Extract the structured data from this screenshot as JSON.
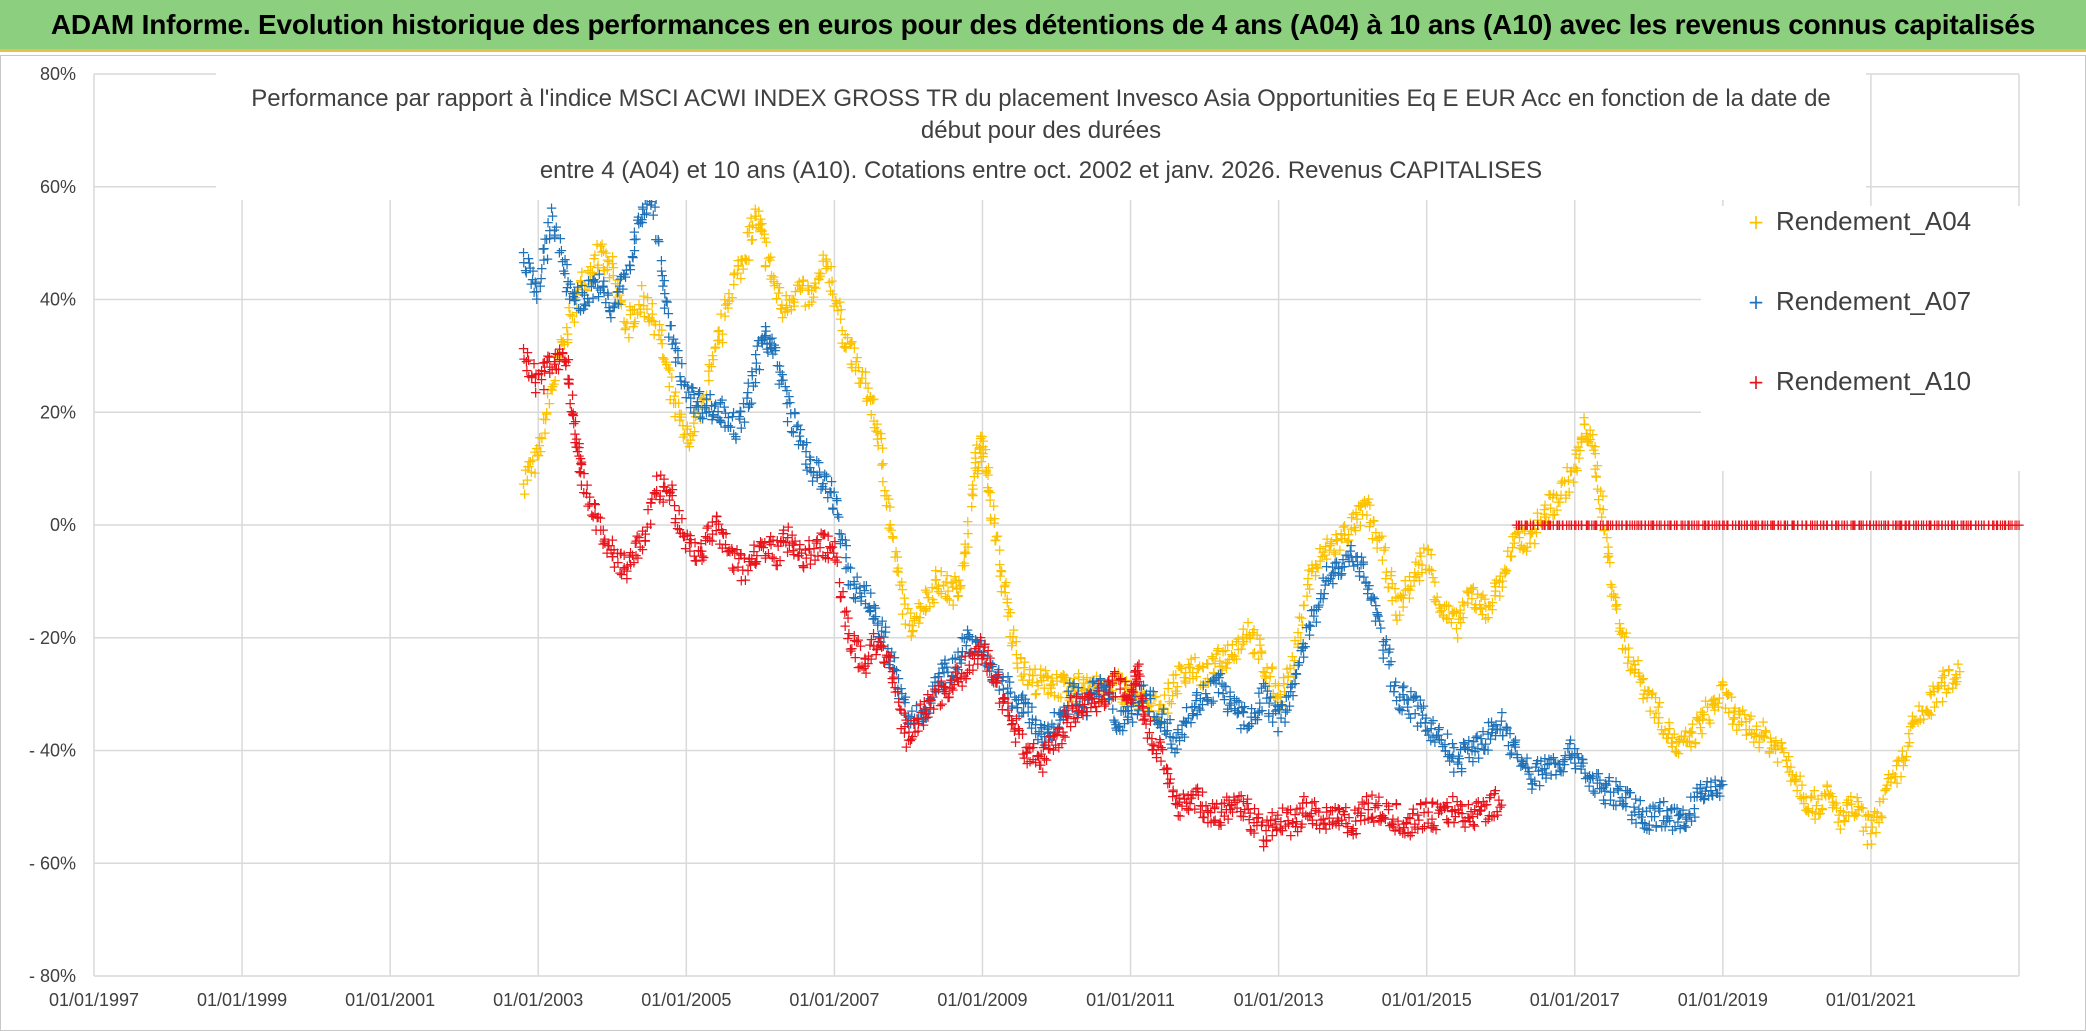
{
  "banner": {
    "text": "ADAM Informe. Evolution historique des performances en euros pour des détentions de 4 ans (A04) à 10 ans (A10) avec les revenus connus capitalisés"
  },
  "chart_data": {
    "type": "scatter",
    "title_lines": [
      "Performance par rapport à l'indice MSCI ACWI INDEX GROSS TR  du placement Invesco Asia Opportunities Eq E EUR Acc en fonction de la date de",
      "début pour des durées",
      "entre 4 (A04) et 10 ans (A10). Cotations entre oct. 2002 et janv. 2026. Revenus CAPITALISES"
    ],
    "xlabel": "",
    "ylabel": "",
    "x_ticks": [
      "01/01/1997",
      "01/01/1999",
      "01/01/2001",
      "01/01/2003",
      "01/01/2005",
      "01/01/2007",
      "01/01/2009",
      "01/01/2011",
      "01/01/2013",
      "01/01/2015",
      "01/01/2017",
      "01/01/2019",
      "01/01/2021"
    ],
    "xlim": [
      1997.0,
      2023.0
    ],
    "y_ticks": [
      "80%",
      "60%",
      "40%",
      "20%",
      "0%",
      "- 20%",
      "- 40%",
      "- 60%",
      "- 80%"
    ],
    "y_tick_values": [
      80,
      60,
      40,
      20,
      0,
      -20,
      -40,
      -60,
      -80
    ],
    "ylim": [
      -80,
      80
    ],
    "grid": true,
    "legend_position": "right",
    "marker": "+",
    "series": [
      {
        "name": "Rendement_A04",
        "color": "#fcc200",
        "points": [
          [
            2002.8,
            8
          ],
          [
            2003.0,
            12
          ],
          [
            2003.2,
            25
          ],
          [
            2003.4,
            35
          ],
          [
            2003.6,
            43
          ],
          [
            2003.8,
            48
          ],
          [
            2004.0,
            45
          ],
          [
            2004.2,
            35
          ],
          [
            2004.4,
            40
          ],
          [
            2004.6,
            36
          ],
          [
            2004.8,
            23
          ],
          [
            2005.0,
            15
          ],
          [
            2005.2,
            20
          ],
          [
            2005.4,
            30
          ],
          [
            2005.6,
            42
          ],
          [
            2005.8,
            48
          ],
          [
            2005.95,
            55
          ],
          [
            2006.1,
            47
          ],
          [
            2006.3,
            38
          ],
          [
            2006.5,
            42
          ],
          [
            2006.7,
            40
          ],
          [
            2006.9,
            47
          ],
          [
            2007.1,
            35
          ],
          [
            2007.3,
            28
          ],
          [
            2007.5,
            22
          ],
          [
            2007.65,
            12
          ],
          [
            2007.8,
            -5
          ],
          [
            2008.0,
            -18
          ],
          [
            2008.2,
            -14
          ],
          [
            2008.4,
            -10
          ],
          [
            2008.6,
            -12
          ],
          [
            2008.75,
            -8
          ],
          [
            2008.9,
            10
          ],
          [
            2009.0,
            15
          ],
          [
            2009.1,
            5
          ],
          [
            2009.25,
            -8
          ],
          [
            2009.4,
            -20
          ],
          [
            2009.6,
            -27
          ],
          [
            2009.8,
            -28
          ],
          [
            2010.0,
            -28
          ],
          [
            2010.2,
            -30
          ],
          [
            2010.4,
            -27
          ],
          [
            2010.6,
            -30
          ],
          [
            2010.8,
            -28
          ],
          [
            2011.0,
            -30
          ],
          [
            2011.2,
            -32
          ],
          [
            2011.4,
            -33
          ],
          [
            2011.6,
            -28
          ],
          [
            2011.8,
            -25
          ],
          [
            2012.0,
            -27
          ],
          [
            2012.2,
            -24
          ],
          [
            2012.4,
            -22
          ],
          [
            2012.6,
            -18
          ],
          [
            2012.8,
            -25
          ],
          [
            2013.0,
            -30
          ],
          [
            2013.2,
            -25
          ],
          [
            2013.4,
            -10
          ],
          [
            2013.6,
            -5
          ],
          [
            2013.8,
            -3
          ],
          [
            2014.0,
            0
          ],
          [
            2014.2,
            3
          ],
          [
            2014.4,
            -5
          ],
          [
            2014.6,
            -15
          ],
          [
            2014.8,
            -10
          ],
          [
            2015.0,
            -5
          ],
          [
            2015.2,
            -15
          ],
          [
            2015.4,
            -18
          ],
          [
            2015.6,
            -12
          ],
          [
            2015.8,
            -15
          ],
          [
            2016.0,
            -10
          ],
          [
            2016.2,
            -3
          ],
          [
            2016.4,
            -2
          ],
          [
            2016.6,
            2
          ],
          [
            2016.8,
            5
          ],
          [
            2017.0,
            10
          ],
          [
            2017.15,
            18
          ],
          [
            2017.3,
            10
          ],
          [
            2017.45,
            -5
          ],
          [
            2017.6,
            -18
          ],
          [
            2017.8,
            -25
          ],
          [
            2018.0,
            -30
          ],
          [
            2018.2,
            -35
          ],
          [
            2018.4,
            -40
          ],
          [
            2018.6,
            -37
          ],
          [
            2018.8,
            -33
          ],
          [
            2019.0,
            -30
          ],
          [
            2019.2,
            -35
          ],
          [
            2019.4,
            -36
          ],
          [
            2019.6,
            -38
          ],
          [
            2019.8,
            -40
          ],
          [
            2020.0,
            -45
          ],
          [
            2020.2,
            -50
          ],
          [
            2020.4,
            -48
          ],
          [
            2020.6,
            -52
          ],
          [
            2020.8,
            -50
          ],
          [
            2021.0,
            -55
          ],
          [
            2021.2,
            -48
          ],
          [
            2021.4,
            -43
          ],
          [
            2021.6,
            -35
          ],
          [
            2021.8,
            -32
          ],
          [
            2022.0,
            -28
          ],
          [
            2022.2,
            -26
          ]
        ]
      },
      {
        "name": "Rendement_A07",
        "color": "#1f72b8",
        "points": [
          [
            2002.8,
            48
          ],
          [
            2003.0,
            42
          ],
          [
            2003.2,
            55
          ],
          [
            2003.4,
            42
          ],
          [
            2003.6,
            40
          ],
          [
            2003.8,
            43
          ],
          [
            2004.0,
            38
          ],
          [
            2004.2,
            45
          ],
          [
            2004.4,
            55
          ],
          [
            2004.55,
            60
          ],
          [
            2004.7,
            40
          ],
          [
            2004.9,
            28
          ],
          [
            2005.1,
            22
          ],
          [
            2005.3,
            21
          ],
          [
            2005.5,
            20
          ],
          [
            2005.7,
            17
          ],
          [
            2005.9,
            25
          ],
          [
            2006.05,
            35
          ],
          [
            2006.2,
            30
          ],
          [
            2006.4,
            20
          ],
          [
            2006.6,
            13
          ],
          [
            2006.8,
            8
          ],
          [
            2007.0,
            5
          ],
          [
            2007.2,
            -10
          ],
          [
            2007.4,
            -12
          ],
          [
            2007.6,
            -17
          ],
          [
            2007.8,
            -25
          ],
          [
            2008.0,
            -35
          ],
          [
            2008.2,
            -33
          ],
          [
            2008.4,
            -28
          ],
          [
            2008.6,
            -25
          ],
          [
            2008.8,
            -20
          ],
          [
            2009.0,
            -22
          ],
          [
            2009.2,
            -28
          ],
          [
            2009.4,
            -30
          ],
          [
            2009.6,
            -33
          ],
          [
            2009.8,
            -38
          ],
          [
            2010.0,
            -35
          ],
          [
            2010.2,
            -30
          ],
          [
            2010.4,
            -32
          ],
          [
            2010.6,
            -28
          ],
          [
            2010.8,
            -35
          ],
          [
            2011.0,
            -33
          ],
          [
            2011.2,
            -30
          ],
          [
            2011.4,
            -34
          ],
          [
            2011.6,
            -38
          ],
          [
            2011.8,
            -33
          ],
          [
            2012.0,
            -30
          ],
          [
            2012.2,
            -28
          ],
          [
            2012.4,
            -33
          ],
          [
            2012.6,
            -35
          ],
          [
            2012.8,
            -30
          ],
          [
            2013.0,
            -35
          ],
          [
            2013.2,
            -28
          ],
          [
            2013.4,
            -20
          ],
          [
            2013.6,
            -10
          ],
          [
            2013.8,
            -8
          ],
          [
            2014.0,
            -5
          ],
          [
            2014.2,
            -10
          ],
          [
            2014.4,
            -20
          ],
          [
            2014.6,
            -30
          ],
          [
            2014.8,
            -32
          ],
          [
            2015.0,
            -35
          ],
          [
            2015.2,
            -38
          ],
          [
            2015.4,
            -42
          ],
          [
            2015.6,
            -40
          ],
          [
            2015.8,
            -38
          ],
          [
            2016.0,
            -35
          ],
          [
            2016.2,
            -40
          ],
          [
            2016.4,
            -45
          ],
          [
            2016.6,
            -43
          ],
          [
            2016.8,
            -42
          ],
          [
            2017.0,
            -40
          ],
          [
            2017.2,
            -45
          ],
          [
            2017.4,
            -47
          ],
          [
            2017.6,
            -48
          ],
          [
            2017.8,
            -50
          ],
          [
            2018.0,
            -52
          ],
          [
            2018.2,
            -51
          ],
          [
            2018.4,
            -53
          ],
          [
            2018.6,
            -50
          ],
          [
            2018.8,
            -47
          ],
          [
            2019.0,
            -46
          ]
        ]
      },
      {
        "name": "Rendement_A10",
        "color": "#e8141c",
        "points": [
          [
            2002.8,
            30
          ],
          [
            2003.0,
            25
          ],
          [
            2003.2,
            30
          ],
          [
            2003.4,
            28
          ],
          [
            2003.5,
            15
          ],
          [
            2003.6,
            8
          ],
          [
            2003.8,
            0
          ],
          [
            2004.0,
            -5
          ],
          [
            2004.2,
            -8
          ],
          [
            2004.4,
            -3
          ],
          [
            2004.6,
            7
          ],
          [
            2004.8,
            5
          ],
          [
            2005.0,
            -3
          ],
          [
            2005.2,
            -5
          ],
          [
            2005.4,
            0
          ],
          [
            2005.6,
            -5
          ],
          [
            2005.8,
            -8
          ],
          [
            2006.0,
            -3
          ],
          [
            2006.2,
            -5
          ],
          [
            2006.4,
            -2
          ],
          [
            2006.6,
            -6
          ],
          [
            2006.8,
            -3
          ],
          [
            2007.0,
            -5
          ],
          [
            2007.2,
            -20
          ],
          [
            2007.4,
            -25
          ],
          [
            2007.6,
            -20
          ],
          [
            2007.8,
            -28
          ],
          [
            2008.0,
            -38
          ],
          [
            2008.2,
            -33
          ],
          [
            2008.4,
            -30
          ],
          [
            2008.6,
            -28
          ],
          [
            2008.8,
            -25
          ],
          [
            2009.0,
            -22
          ],
          [
            2009.2,
            -28
          ],
          [
            2009.4,
            -35
          ],
          [
            2009.6,
            -40
          ],
          [
            2009.8,
            -42
          ],
          [
            2010.0,
            -38
          ],
          [
            2010.2,
            -33
          ],
          [
            2010.4,
            -32
          ],
          [
            2010.6,
            -30
          ],
          [
            2010.8,
            -28
          ],
          [
            2011.0,
            -30
          ],
          [
            2011.1,
            -25
          ],
          [
            2011.2,
            -35
          ],
          [
            2011.4,
            -40
          ],
          [
            2011.6,
            -50
          ],
          [
            2011.8,
            -48
          ],
          [
            2012.0,
            -50
          ],
          [
            2012.2,
            -52
          ],
          [
            2012.4,
            -49
          ],
          [
            2012.6,
            -51
          ],
          [
            2012.8,
            -55
          ],
          [
            2013.0,
            -52
          ],
          [
            2013.2,
            -53
          ],
          [
            2013.4,
            -50
          ],
          [
            2013.6,
            -52
          ],
          [
            2013.8,
            -51
          ],
          [
            2014.0,
            -53
          ],
          [
            2014.2,
            -50
          ],
          [
            2014.4,
            -51
          ],
          [
            2014.6,
            -52
          ],
          [
            2014.8,
            -53
          ],
          [
            2015.0,
            -51
          ],
          [
            2015.2,
            -52
          ],
          [
            2015.4,
            -50
          ],
          [
            2015.6,
            -52
          ],
          [
            2015.8,
            -50
          ],
          [
            2016.0,
            -49
          ],
          [
            2016.2,
            0
          ],
          [
            2016.6,
            0
          ],
          [
            2017.0,
            0
          ],
          [
            2017.4,
            0
          ],
          [
            2017.8,
            0
          ],
          [
            2018.2,
            0
          ],
          [
            2018.6,
            0
          ],
          [
            2019.0,
            0
          ],
          [
            2019.4,
            0
          ],
          [
            2019.8,
            0
          ],
          [
            2020.2,
            0
          ],
          [
            2020.6,
            0
          ],
          [
            2021.0,
            0
          ],
          [
            2021.4,
            0
          ],
          [
            2021.8,
            0
          ],
          [
            2022.2,
            0
          ],
          [
            2022.6,
            0
          ],
          [
            2023.0,
            0
          ]
        ]
      }
    ]
  }
}
